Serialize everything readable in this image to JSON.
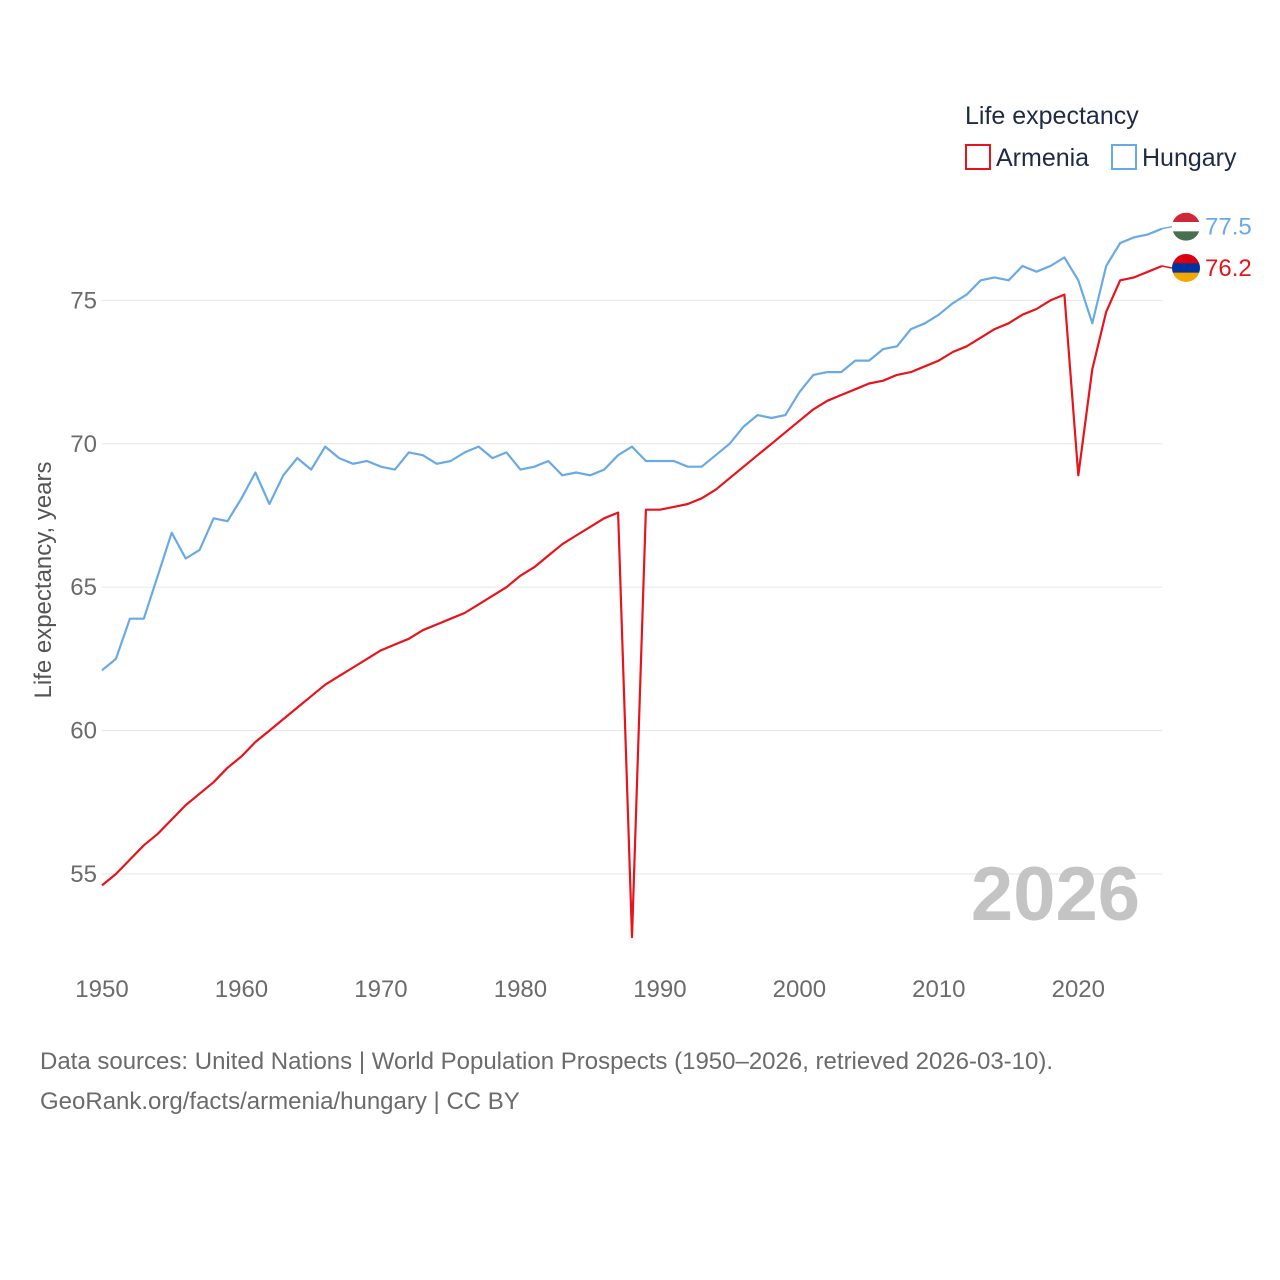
{
  "colors": {
    "armenia": "#e8141c",
    "hungary": "#6aaae4",
    "grid": "#e6e6e6",
    "flag_red": "#d90012",
    "flag_blue": "#0033a0",
    "flag_orange": "#f2a800",
    "flag_hu_red": "#ce2939",
    "flag_hu_white": "#ffffff",
    "flag_hu_green": "#477050"
  },
  "chart_data": {
    "type": "line",
    "title": "",
    "xlabel": "",
    "ylabel": "Life expectancy, years",
    "xlim": [
      1950,
      2026
    ],
    "ylim": [
      52,
      78.5
    ],
    "x_ticks": [
      1950,
      1960,
      1970,
      1980,
      1990,
      2000,
      2010,
      2020
    ],
    "y_ticks": [
      55,
      60,
      65,
      70,
      75
    ],
    "legend_title": "Life expectancy",
    "legend_position": "top-right",
    "year_stamp": "2026",
    "x": [
      1950,
      1951,
      1952,
      1953,
      1954,
      1955,
      1956,
      1957,
      1958,
      1959,
      1960,
      1961,
      1962,
      1963,
      1964,
      1965,
      1966,
      1967,
      1968,
      1969,
      1970,
      1971,
      1972,
      1973,
      1974,
      1975,
      1976,
      1977,
      1978,
      1979,
      1980,
      1981,
      1982,
      1983,
      1984,
      1985,
      1986,
      1987,
      1988,
      1989,
      1990,
      1991,
      1992,
      1993,
      1994,
      1995,
      1996,
      1997,
      1998,
      1999,
      2000,
      2001,
      2002,
      2003,
      2004,
      2005,
      2006,
      2007,
      2008,
      2009,
      2010,
      2011,
      2012,
      2013,
      2014,
      2015,
      2016,
      2017,
      2018,
      2019,
      2020,
      2021,
      2022,
      2023,
      2024,
      2025,
      2026
    ],
    "series": [
      {
        "name": "Armenia",
        "end_label": "76.2",
        "values": [
          54.6,
          55.0,
          55.5,
          56.0,
          56.4,
          56.9,
          57.4,
          57.8,
          58.2,
          58.7,
          59.1,
          59.6,
          60.0,
          60.4,
          60.8,
          61.2,
          61.6,
          61.9,
          62.2,
          62.5,
          62.8,
          63.0,
          63.2,
          63.5,
          63.7,
          63.9,
          64.1,
          64.4,
          64.7,
          65.0,
          65.4,
          65.7,
          66.1,
          66.5,
          66.8,
          67.1,
          67.4,
          67.6,
          52.8,
          67.7,
          67.7,
          67.8,
          67.9,
          68.1,
          68.4,
          68.8,
          69.2,
          69.6,
          70.0,
          70.4,
          70.8,
          71.2,
          71.5,
          71.7,
          71.9,
          72.1,
          72.2,
          72.4,
          72.5,
          72.7,
          72.9,
          73.2,
          73.4,
          73.7,
          74.0,
          74.2,
          74.5,
          74.7,
          75.0,
          75.2,
          68.9,
          72.6,
          74.6,
          75.7,
          75.8,
          76.0,
          76.2
        ]
      },
      {
        "name": "Hungary",
        "end_label": "77.5",
        "values": [
          62.1,
          62.5,
          63.9,
          63.9,
          65.4,
          66.9,
          66.0,
          66.3,
          67.4,
          67.3,
          68.1,
          69.0,
          67.9,
          68.9,
          69.5,
          69.1,
          69.9,
          69.5,
          69.3,
          69.4,
          69.2,
          69.1,
          69.7,
          69.6,
          69.3,
          69.4,
          69.7,
          69.9,
          69.5,
          69.7,
          69.1,
          69.2,
          69.4,
          68.9,
          69.0,
          68.9,
          69.1,
          69.6,
          69.9,
          69.4,
          69.4,
          69.4,
          69.2,
          69.2,
          69.6,
          70.0,
          70.6,
          71.0,
          70.9,
          71.0,
          71.8,
          72.4,
          72.5,
          72.5,
          72.9,
          72.9,
          73.3,
          73.4,
          74.0,
          74.2,
          74.5,
          74.9,
          75.2,
          75.7,
          75.8,
          75.7,
          76.2,
          76.0,
          76.2,
          76.5,
          75.7,
          74.2,
          76.2,
          77.0,
          77.2,
          77.3,
          77.5
        ]
      }
    ]
  },
  "footer": {
    "line1": "Data sources: United Nations | World Population Prospects (1950–2026, retrieved 2026-03-10).",
    "line2": "GeoRank.org/facts/armenia/hungary | CC BY"
  }
}
